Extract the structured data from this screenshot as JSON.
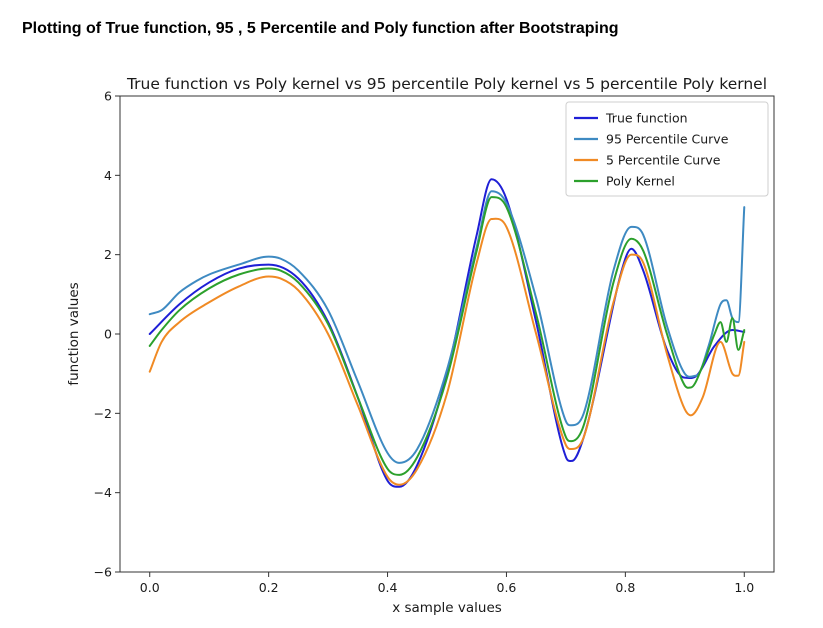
{
  "heading": "Plotting of True function, 95 , 5 Percentile and Poly function after Bootstraping",
  "chart_data": {
    "type": "line",
    "title": "True function vs Poly kernel vs 95 percentile Poly kernel vs 5 percentile Poly kernel",
    "xlabel": "x sample values",
    "ylabel": "function values",
    "xlim": [
      -0.05,
      1.05
    ],
    "ylim": [
      -6,
      6
    ],
    "xticks": [
      {
        "value": 0.0,
        "label": "0.0"
      },
      {
        "value": 0.2,
        "label": "0.2"
      },
      {
        "value": 0.4,
        "label": "0.4"
      },
      {
        "value": 0.6,
        "label": "0.6"
      },
      {
        "value": 0.8,
        "label": "0.8"
      },
      {
        "value": 1.0,
        "label": "1.0"
      }
    ],
    "yticks": [
      {
        "value": -6,
        "label": "−6"
      },
      {
        "value": -4,
        "label": "−4"
      },
      {
        "value": -2,
        "label": "−2"
      },
      {
        "value": 0,
        "label": "0"
      },
      {
        "value": 2,
        "label": "2"
      },
      {
        "value": 4,
        "label": "4"
      },
      {
        "value": 6,
        "label": "6"
      }
    ],
    "grid": false,
    "legend_position": "top-right",
    "series": [
      {
        "name": "True function",
        "color": "#1f1fd6",
        "points": [
          [
            0.0,
            0.0
          ],
          [
            0.05,
            0.75
          ],
          [
            0.1,
            1.3
          ],
          [
            0.15,
            1.65
          ],
          [
            0.2,
            1.75
          ],
          [
            0.25,
            1.4
          ],
          [
            0.3,
            0.3
          ],
          [
            0.35,
            -1.6
          ],
          [
            0.4,
            -3.7
          ],
          [
            0.42,
            -3.85
          ],
          [
            0.45,
            -3.3
          ],
          [
            0.5,
            -1.0
          ],
          [
            0.55,
            2.5
          ],
          [
            0.575,
            3.9
          ],
          [
            0.6,
            3.4
          ],
          [
            0.65,
            0.3
          ],
          [
            0.7,
            -3.1
          ],
          [
            0.71,
            -3.2
          ],
          [
            0.73,
            -2.6
          ],
          [
            0.8,
            1.9
          ],
          [
            0.81,
            2.15
          ],
          [
            0.83,
            1.6
          ],
          [
            0.87,
            -0.4
          ],
          [
            0.9,
            -1.1
          ],
          [
            0.92,
            -1.05
          ],
          [
            0.95,
            -0.3
          ],
          [
            0.98,
            0.1
          ],
          [
            1.0,
            0.05
          ]
        ]
      },
      {
        "name": "95 Percentile Curve",
        "color": "#3e8ac2",
        "points": [
          [
            0.0,
            0.5
          ],
          [
            0.02,
            0.6
          ],
          [
            0.05,
            1.05
          ],
          [
            0.08,
            1.35
          ],
          [
            0.1,
            1.5
          ],
          [
            0.15,
            1.75
          ],
          [
            0.2,
            1.95
          ],
          [
            0.22,
            1.9
          ],
          [
            0.25,
            1.6
          ],
          [
            0.3,
            0.6
          ],
          [
            0.35,
            -1.2
          ],
          [
            0.4,
            -3.0
          ],
          [
            0.42,
            -3.25
          ],
          [
            0.45,
            -2.9
          ],
          [
            0.5,
            -0.9
          ],
          [
            0.55,
            2.2
          ],
          [
            0.575,
            3.6
          ],
          [
            0.6,
            3.3
          ],
          [
            0.65,
            0.9
          ],
          [
            0.7,
            -2.2
          ],
          [
            0.71,
            -2.3
          ],
          [
            0.73,
            -2.0
          ],
          [
            0.78,
            1.6
          ],
          [
            0.81,
            2.7
          ],
          [
            0.83,
            2.5
          ],
          [
            0.87,
            0.2
          ],
          [
            0.9,
            -1.0
          ],
          [
            0.92,
            -1.05
          ],
          [
            0.94,
            -0.3
          ],
          [
            0.96,
            0.75
          ],
          [
            0.97,
            0.85
          ],
          [
            0.98,
            0.4
          ],
          [
            0.99,
            0.3
          ],
          [
            1.0,
            3.2
          ]
        ]
      },
      {
        "name": "5 Percentile Curve",
        "color": "#f08a24",
        "points": [
          [
            0.0,
            -0.95
          ],
          [
            0.02,
            -0.2
          ],
          [
            0.05,
            0.3
          ],
          [
            0.1,
            0.8
          ],
          [
            0.15,
            1.2
          ],
          [
            0.2,
            1.45
          ],
          [
            0.22,
            1.4
          ],
          [
            0.25,
            1.1
          ],
          [
            0.3,
            0.0
          ],
          [
            0.35,
            -1.8
          ],
          [
            0.4,
            -3.6
          ],
          [
            0.42,
            -3.8
          ],
          [
            0.45,
            -3.4
          ],
          [
            0.5,
            -1.5
          ],
          [
            0.55,
            1.8
          ],
          [
            0.575,
            2.9
          ],
          [
            0.6,
            2.7
          ],
          [
            0.65,
            0.0
          ],
          [
            0.7,
            -2.8
          ],
          [
            0.71,
            -2.9
          ],
          [
            0.73,
            -2.6
          ],
          [
            0.78,
            0.8
          ],
          [
            0.81,
            2.0
          ],
          [
            0.83,
            1.8
          ],
          [
            0.87,
            -0.5
          ],
          [
            0.9,
            -1.9
          ],
          [
            0.91,
            -2.05
          ],
          [
            0.93,
            -1.6
          ],
          [
            0.96,
            -0.2
          ],
          [
            0.98,
            -1.0
          ],
          [
            0.99,
            -1.05
          ],
          [
            1.0,
            -0.2
          ]
        ]
      },
      {
        "name": "Poly Kernel",
        "color": "#2ca02c",
        "points": [
          [
            0.0,
            -0.3
          ],
          [
            0.02,
            0.1
          ],
          [
            0.05,
            0.6
          ],
          [
            0.1,
            1.15
          ],
          [
            0.15,
            1.5
          ],
          [
            0.2,
            1.65
          ],
          [
            0.22,
            1.6
          ],
          [
            0.25,
            1.3
          ],
          [
            0.3,
            0.25
          ],
          [
            0.35,
            -1.6
          ],
          [
            0.4,
            -3.4
          ],
          [
            0.42,
            -3.55
          ],
          [
            0.45,
            -3.1
          ],
          [
            0.5,
            -1.1
          ],
          [
            0.55,
            2.1
          ],
          [
            0.575,
            3.45
          ],
          [
            0.6,
            3.2
          ],
          [
            0.65,
            0.5
          ],
          [
            0.7,
            -2.6
          ],
          [
            0.71,
            -2.7
          ],
          [
            0.73,
            -2.3
          ],
          [
            0.78,
            1.3
          ],
          [
            0.81,
            2.4
          ],
          [
            0.83,
            2.1
          ],
          [
            0.87,
            0.0
          ],
          [
            0.9,
            -1.3
          ],
          [
            0.91,
            -1.35
          ],
          [
            0.93,
            -0.8
          ],
          [
            0.95,
            0.0
          ],
          [
            0.96,
            0.3
          ],
          [
            0.97,
            -0.2
          ],
          [
            0.98,
            0.4
          ],
          [
            0.99,
            -0.4
          ],
          [
            1.0,
            0.1
          ]
        ]
      }
    ]
  }
}
